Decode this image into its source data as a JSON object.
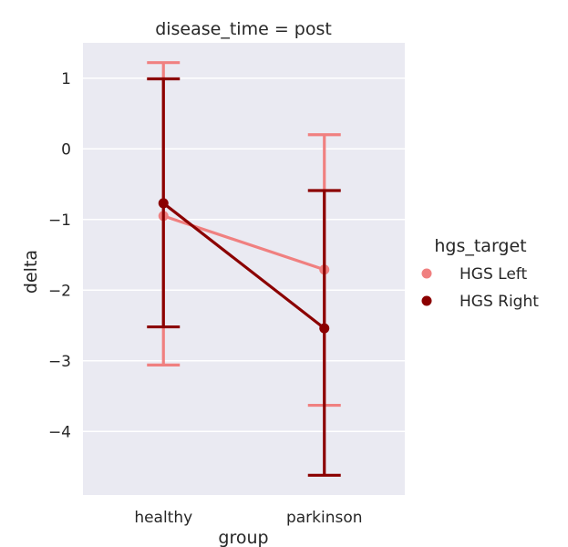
{
  "chart_data": {
    "type": "pointplot",
    "title": "disease_time = post",
    "xlabel": "group",
    "ylabel": "delta",
    "categories": [
      "healthy",
      "parkinson"
    ],
    "ylim": [
      -4.9,
      1.5
    ],
    "yticks": [
      1,
      0,
      -1,
      -2,
      -3,
      -4
    ],
    "ytick_labels": [
      "1",
      "0",
      "−1",
      "−2",
      "−3",
      "−4"
    ],
    "grid": true,
    "legend": {
      "title": "hgs_target",
      "placement": "right"
    },
    "series": [
      {
        "name": "HGS Left",
        "color": "#f08080",
        "values": [
          -0.95,
          -1.71
        ],
        "ci_low": [
          -3.06,
          -3.63
        ],
        "ci_high": [
          1.22,
          0.2
        ]
      },
      {
        "name": "HGS Right",
        "color": "#8b0000",
        "values": [
          -0.77,
          -2.54
        ],
        "ci_low": [
          -2.52,
          -4.62
        ],
        "ci_high": [
          0.99,
          -0.59
        ]
      }
    ]
  }
}
